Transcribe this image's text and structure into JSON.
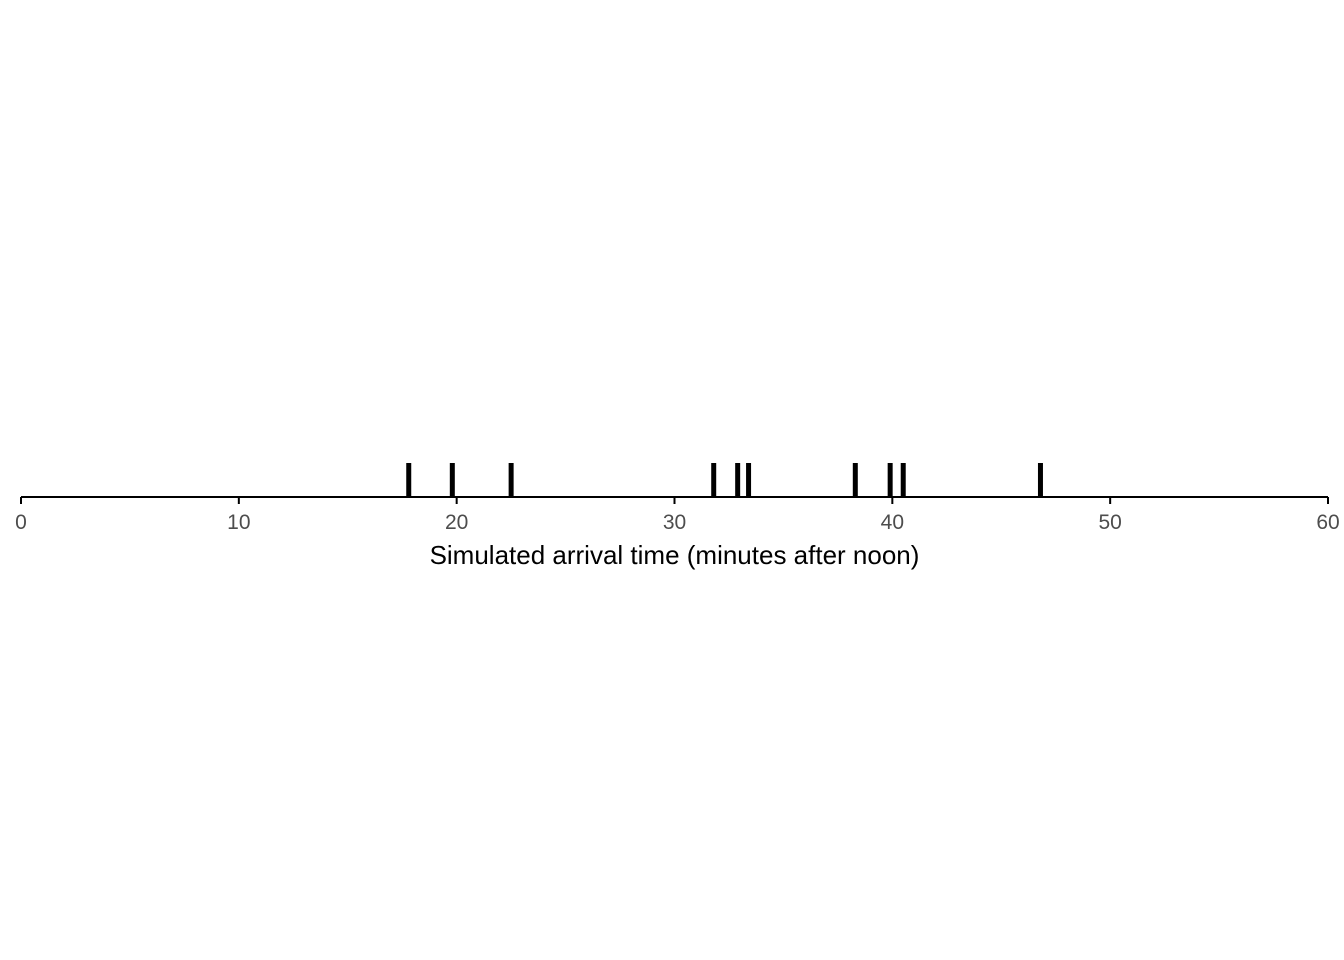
{
  "chart_data": {
    "type": "scatter",
    "subtype": "rug",
    "title": "",
    "xlabel": "Simulated arrival time (minutes after noon)",
    "ylabel": "",
    "xlim": [
      0,
      60
    ],
    "x_ticks": [
      0,
      10,
      20,
      30,
      40,
      50,
      60
    ],
    "x_tick_labels": [
      "0",
      "10",
      "20",
      "30",
      "40",
      "50",
      "60"
    ],
    "grid": false,
    "legend": "none",
    "mark_color": "#000000",
    "axis_color": "#000000",
    "tick_label_color": "#4d4d4d",
    "series": [
      {
        "x": [
          17.8,
          19.8,
          22.5,
          31.8,
          32.9,
          33.4,
          38.3,
          39.9,
          40.5,
          46.8
        ]
      }
    ]
  }
}
